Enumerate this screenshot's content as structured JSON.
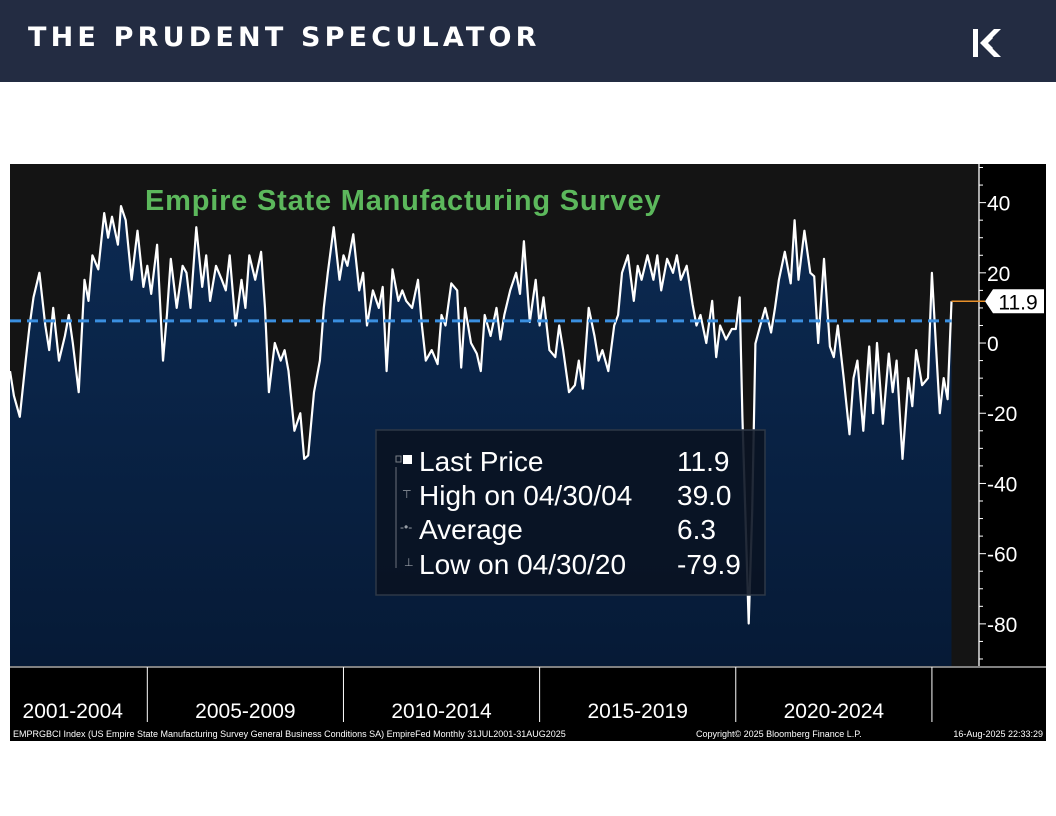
{
  "header": {
    "brand": "THE PRUDENT SPECULATOR",
    "logo_icon": "tps-monogram-icon",
    "bg_color": "#232c42"
  },
  "chart_data": {
    "type": "line",
    "title": "Empire State Manufacturing Survey",
    "title_color": "#5cb85c",
    "line_color": "#ffffff",
    "fill_top_color": "#0c2a52",
    "average_line_color": "#3a8fe0",
    "ylim": [
      -92,
      51
    ],
    "yticks": [
      40,
      20,
      0,
      -20,
      -40,
      -60,
      -80
    ],
    "ytick_labels": [
      "40",
      "20",
      "0",
      "-20",
      "-40",
      "-60",
      "-80"
    ],
    "x_start": 2001.5,
    "x_end": 2025.5,
    "x_axis_end": 2026.2,
    "period_dividers": [
      2005,
      2010,
      2015,
      2020,
      2025
    ],
    "period_labels": [
      {
        "label": "2001-2004",
        "center": 2003.1
      },
      {
        "label": "2005-2009",
        "center": 2007.5
      },
      {
        "label": "2010-2014",
        "center": 2012.5
      },
      {
        "label": "2015-2019",
        "center": 2017.5
      },
      {
        "label": "2020-2024",
        "center": 2022.5
      }
    ],
    "series": [
      {
        "name": "EMPRGBCI Index",
        "points": [
          [
            2001.5,
            -8
          ],
          [
            2001.6,
            -15
          ],
          [
            2001.75,
            -21
          ],
          [
            2001.9,
            -5
          ],
          [
            2002.0,
            5
          ],
          [
            2002.1,
            13
          ],
          [
            2002.25,
            20
          ],
          [
            2002.4,
            5
          ],
          [
            2002.5,
            -2
          ],
          [
            2002.6,
            10
          ],
          [
            2002.75,
            -5
          ],
          [
            2002.9,
            2
          ],
          [
            2003.0,
            8
          ],
          [
            2003.1,
            0
          ],
          [
            2003.25,
            -14
          ],
          [
            2003.4,
            18
          ],
          [
            2003.5,
            12
          ],
          [
            2003.6,
            25
          ],
          [
            2003.75,
            21
          ],
          [
            2003.9,
            37
          ],
          [
            2004.0,
            30
          ],
          [
            2004.1,
            36
          ],
          [
            2004.25,
            28
          ],
          [
            2004.33,
            39
          ],
          [
            2004.45,
            35
          ],
          [
            2004.6,
            18
          ],
          [
            2004.75,
            32
          ],
          [
            2004.9,
            16
          ],
          [
            2005.0,
            22
          ],
          [
            2005.1,
            14
          ],
          [
            2005.25,
            28
          ],
          [
            2005.4,
            -5
          ],
          [
            2005.5,
            8
          ],
          [
            2005.6,
            24
          ],
          [
            2005.75,
            10
          ],
          [
            2005.9,
            22
          ],
          [
            2006.0,
            20
          ],
          [
            2006.1,
            10
          ],
          [
            2006.25,
            33
          ],
          [
            2006.4,
            16
          ],
          [
            2006.5,
            25
          ],
          [
            2006.6,
            12
          ],
          [
            2006.75,
            22
          ],
          [
            2006.9,
            18
          ],
          [
            2007.0,
            15
          ],
          [
            2007.1,
            25
          ],
          [
            2007.25,
            5
          ],
          [
            2007.4,
            18
          ],
          [
            2007.5,
            10
          ],
          [
            2007.6,
            25
          ],
          [
            2007.75,
            18
          ],
          [
            2007.9,
            26
          ],
          [
            2008.0,
            10
          ],
          [
            2008.1,
            -14
          ],
          [
            2008.25,
            0
          ],
          [
            2008.4,
            -5
          ],
          [
            2008.5,
            -2
          ],
          [
            2008.6,
            -8
          ],
          [
            2008.75,
            -25
          ],
          [
            2008.9,
            -20
          ],
          [
            2009.0,
            -33
          ],
          [
            2009.1,
            -32
          ],
          [
            2009.25,
            -14
          ],
          [
            2009.4,
            -5
          ],
          [
            2009.5,
            10
          ],
          [
            2009.6,
            20
          ],
          [
            2009.75,
            33
          ],
          [
            2009.9,
            18
          ],
          [
            2010.0,
            25
          ],
          [
            2010.1,
            22
          ],
          [
            2010.25,
            31
          ],
          [
            2010.4,
            15
          ],
          [
            2010.5,
            20
          ],
          [
            2010.6,
            5
          ],
          [
            2010.75,
            15
          ],
          [
            2010.9,
            10
          ],
          [
            2011.0,
            16
          ],
          [
            2011.1,
            -8
          ],
          [
            2011.25,
            21
          ],
          [
            2011.4,
            12
          ],
          [
            2011.5,
            15
          ],
          [
            2011.6,
            12
          ],
          [
            2011.75,
            10
          ],
          [
            2011.9,
            18
          ],
          [
            2012.0,
            5
          ],
          [
            2012.1,
            -5
          ],
          [
            2012.25,
            -2
          ],
          [
            2012.4,
            -6
          ],
          [
            2012.5,
            8
          ],
          [
            2012.6,
            5
          ],
          [
            2012.75,
            17
          ],
          [
            2012.9,
            15
          ],
          [
            2013.0,
            -7
          ],
          [
            2013.1,
            10
          ],
          [
            2013.25,
            0
          ],
          [
            2013.4,
            -3
          ],
          [
            2013.5,
            -8
          ],
          [
            2013.6,
            8
          ],
          [
            2013.75,
            2
          ],
          [
            2013.9,
            10
          ],
          [
            2014.0,
            1
          ],
          [
            2014.1,
            8
          ],
          [
            2014.25,
            15
          ],
          [
            2014.4,
            20
          ],
          [
            2014.5,
            14
          ],
          [
            2014.6,
            29
          ],
          [
            2014.75,
            6
          ],
          [
            2014.9,
            18
          ],
          [
            2015.0,
            5
          ],
          [
            2015.1,
            13
          ],
          [
            2015.25,
            -2
          ],
          [
            2015.4,
            -4
          ],
          [
            2015.5,
            5
          ],
          [
            2015.6,
            -2
          ],
          [
            2015.75,
            -14
          ],
          [
            2015.9,
            -12
          ],
          [
            2016.0,
            -5
          ],
          [
            2016.1,
            -13
          ],
          [
            2016.25,
            10
          ],
          [
            2016.4,
            2
          ],
          [
            2016.5,
            -5
          ],
          [
            2016.6,
            -2
          ],
          [
            2016.75,
            -8
          ],
          [
            2016.9,
            5
          ],
          [
            2017.0,
            8
          ],
          [
            2017.1,
            20
          ],
          [
            2017.25,
            25
          ],
          [
            2017.4,
            12
          ],
          [
            2017.5,
            22
          ],
          [
            2017.6,
            18
          ],
          [
            2017.75,
            25
          ],
          [
            2017.9,
            18
          ],
          [
            2018.0,
            25
          ],
          [
            2018.1,
            15
          ],
          [
            2018.25,
            24
          ],
          [
            2018.4,
            20
          ],
          [
            2018.5,
            25
          ],
          [
            2018.6,
            18
          ],
          [
            2018.75,
            22
          ],
          [
            2018.9,
            11
          ],
          [
            2019.0,
            5
          ],
          [
            2019.1,
            8
          ],
          [
            2019.25,
            0
          ],
          [
            2019.4,
            12
          ],
          [
            2019.5,
            -4
          ],
          [
            2019.6,
            5
          ],
          [
            2019.75,
            1
          ],
          [
            2019.9,
            4
          ],
          [
            2020.0,
            4
          ],
          [
            2020.1,
            13
          ],
          [
            2020.17,
            -21
          ],
          [
            2020.33,
            -79.9
          ],
          [
            2020.42,
            -48
          ],
          [
            2020.5,
            -0.2
          ],
          [
            2020.6,
            4
          ],
          [
            2020.75,
            10
          ],
          [
            2020.9,
            3
          ],
          [
            2021.0,
            10
          ],
          [
            2021.1,
            18
          ],
          [
            2021.25,
            26
          ],
          [
            2021.4,
            17
          ],
          [
            2021.5,
            35
          ],
          [
            2021.6,
            18
          ],
          [
            2021.75,
            32
          ],
          [
            2021.9,
            20
          ],
          [
            2022.0,
            19
          ],
          [
            2022.1,
            0
          ],
          [
            2022.25,
            24
          ],
          [
            2022.4,
            -1
          ],
          [
            2022.5,
            -4
          ],
          [
            2022.6,
            5
          ],
          [
            2022.75,
            -10
          ],
          [
            2022.9,
            -26
          ],
          [
            2023.0,
            -10
          ],
          [
            2023.1,
            -5
          ],
          [
            2023.25,
            -25
          ],
          [
            2023.4,
            -1
          ],
          [
            2023.5,
            -20
          ],
          [
            2023.6,
            0
          ],
          [
            2023.75,
            -23
          ],
          [
            2023.9,
            -3
          ],
          [
            2024.0,
            -14
          ],
          [
            2024.1,
            -5
          ],
          [
            2024.25,
            -33
          ],
          [
            2024.4,
            -10
          ],
          [
            2024.5,
            -18
          ],
          [
            2024.6,
            -2
          ],
          [
            2024.75,
            -12
          ],
          [
            2024.9,
            -10
          ],
          [
            2025.0,
            20
          ],
          [
            2025.1,
            0
          ],
          [
            2025.2,
            -20
          ],
          [
            2025.3,
            -10
          ],
          [
            2025.4,
            -16
          ],
          [
            2025.5,
            11.9
          ]
        ]
      }
    ],
    "average": 6.3,
    "last_value_label": "11.9",
    "legend": {
      "position": "center",
      "rows": [
        {
          "label": "Last Price",
          "value": "11.9"
        },
        {
          "label": "High on 04/30/04",
          "value": "39.0"
        },
        {
          "label": "Average",
          "value": "6.3"
        },
        {
          "label": "Low on 04/30/20",
          "value": "-79.9"
        }
      ]
    },
    "footer": {
      "source": "EMPRGBCI Index (US Empire State Manufacturing Survey General Business Conditions SA) EmpireFed Monthly 31JUL2001-31AUG2025",
      "copyright": "Copyright© 2025 Bloomberg Finance L.P.",
      "timestamp": "16-Aug-2025 22:33:29"
    }
  }
}
